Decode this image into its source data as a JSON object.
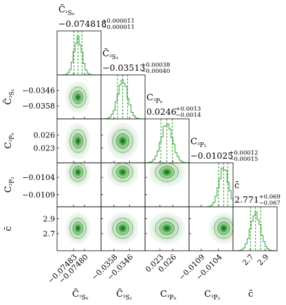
{
  "chart_data": {
    "type": "corner",
    "line_color": "#2ca02c",
    "density_colors": [
      "#eef6ee",
      "#c9e6c6",
      "#8fcb8a",
      "#4fa94e",
      "#1f7a31"
    ],
    "parameters": [
      {
        "key": "c1s0",
        "label_base": "C̃",
        "label_sub": "¹S₀",
        "axis_label": "C̃¹S₀",
        "title": {
          "base": "C̃",
          "sub": "¹S₀"
        },
        "value_text": "−0.074818",
        "plus": "+0.000011",
        "minus": "−0.000011",
        "median": -0.074818,
        "err_plus": 1.1e-05,
        "err_minus": 1.1e-05,
        "range": [
          -0.074875,
          -0.074755
        ],
        "ticks": [
          -0.07483,
          -0.0748
        ],
        "tick_labels": [
          "−0.07483",
          "−0.07480"
        ]
      },
      {
        "key": "c3s1",
        "label_base": "C̃",
        "label_sub": "³S₁",
        "axis_label": "C̃³S₁",
        "title": {
          "base": "C̃",
          "sub": "³S₁"
        },
        "value_text": "−0.03513",
        "plus": "+0.00038",
        "minus": "−0.00040",
        "median": -0.03513,
        "err_plus": 0.00038,
        "err_minus": 0.0004,
        "range": [
          -0.0368,
          -0.0334
        ],
        "ticks": [
          -0.0358,
          -0.0346
        ],
        "tick_labels": [
          "−0.0358",
          "−0.0346"
        ]
      },
      {
        "key": "c3p0",
        "label_base": "C",
        "label_sub": "³P₀",
        "axis_label": "C³P₀",
        "title": {
          "base": "C",
          "sub": "³P₀"
        },
        "value_text": "0.0246",
        "plus": "+0.0013",
        "minus": "−0.0014",
        "median": 0.0246,
        "err_plus": 0.0013,
        "err_minus": 0.0014,
        "range": [
          0.0195,
          0.0298
        ],
        "ticks": [
          0.023,
          0.026
        ],
        "tick_labels": [
          "0.023",
          "0.026"
        ]
      },
      {
        "key": "c3p2",
        "label_base": "C",
        "label_sub": "³P₂",
        "axis_label": "C³P₂",
        "title": {
          "base": "C",
          "sub": "³P₂"
        },
        "value_text": "−0.01025",
        "plus": "+0.00012",
        "minus": "−0.00015",
        "median": -0.01025,
        "err_plus": 0.00012,
        "err_minus": 0.00015,
        "range": [
          -0.01125,
          -0.00998
        ],
        "ticks": [
          -0.0109,
          -0.0104
        ],
        "tick_labels": [
          "−0.0109",
          "−0.0104"
        ]
      },
      {
        "key": "cbar",
        "label_base": "c̄",
        "label_sub": "",
        "axis_label": "c̄",
        "title": {
          "base": "c̄",
          "sub": ""
        },
        "value_text": "2.771",
        "plus": "+0.069",
        "minus": "−0.067",
        "median": 2.771,
        "err_plus": 0.069,
        "err_minus": 0.067,
        "range": [
          2.47,
          3.06
        ],
        "ticks": [
          2.7,
          2.9
        ],
        "tick_labels": [
          "2.7",
          "2.9"
        ]
      }
    ]
  }
}
